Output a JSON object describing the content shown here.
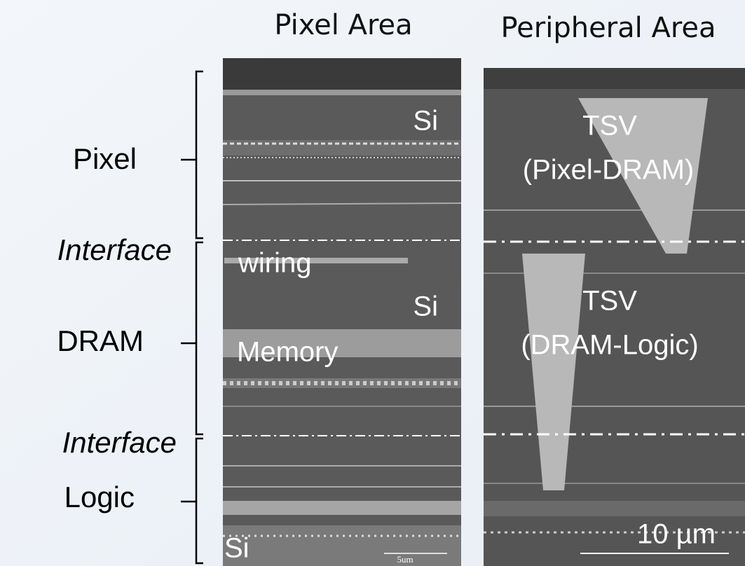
{
  "header": {
    "left_title": "Pixel Area",
    "right_title": "Peripheral Area"
  },
  "layers": [
    {
      "label": "Pixel"
    },
    {
      "label": "Interface"
    },
    {
      "label": "DRAM"
    },
    {
      "label": "Interface"
    },
    {
      "label": "Logic"
    }
  ],
  "pixel_panel": {
    "labels": [
      "Si",
      "wiring",
      "Si",
      "Memory",
      "Si"
    ],
    "scale_bar": "5um"
  },
  "peripheral_panel": {
    "tsv_top": {
      "title": "TSV",
      "subtitle": "(Pixel-DRAM)"
    },
    "tsv_bottom": {
      "title": "TSV",
      "subtitle": "(DRAM-Logic)"
    },
    "scale_bar": "10 µm"
  }
}
